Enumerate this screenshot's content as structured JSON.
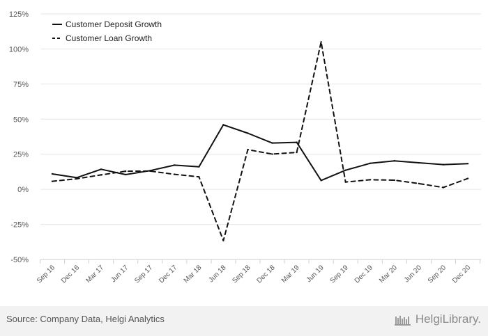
{
  "chart_data": {
    "type": "line",
    "categories": [
      "Sep 16",
      "Dec 16",
      "Mar 17",
      "Jun 17",
      "Sep 17",
      "Dec 17",
      "Mar 18",
      "Jun 18",
      "Sep 18",
      "Dec 18",
      "Mar 19",
      "Jun 19",
      "Sep 19",
      "Dec 19",
      "Mar 20",
      "Jun 20",
      "Sep 20",
      "Dec 20"
    ],
    "y_ticks": [
      "125%",
      "100%",
      "75%",
      "50%",
      "25%",
      "0%",
      "-25%",
      "-50%"
    ],
    "ylim": [
      -50,
      125
    ],
    "grid": true,
    "legend_position": "top-left",
    "series": [
      {
        "name": "Customer Deposit Growth",
        "style": "solid",
        "values": [
          11,
          8.3,
          14.3,
          10.5,
          13.3,
          17.2,
          16.1,
          46,
          40,
          33,
          33.5,
          6.3,
          13.6,
          18.5,
          20.3,
          18.9,
          17.6,
          18.3
        ]
      },
      {
        "name": "Customer Loan Growth",
        "style": "dashed",
        "values": [
          5.7,
          7.5,
          10.3,
          12.9,
          13,
          10.7,
          8.9,
          -36.5,
          28.3,
          25.1,
          26.3,
          105,
          5.2,
          6.8,
          6.5,
          4.1,
          1.3,
          7.7
        ]
      }
    ],
    "line_color": "#111111"
  },
  "footer": {
    "source": "Source: Company Data, Helgi Analytics",
    "brand": "HelgiLibrary."
  }
}
